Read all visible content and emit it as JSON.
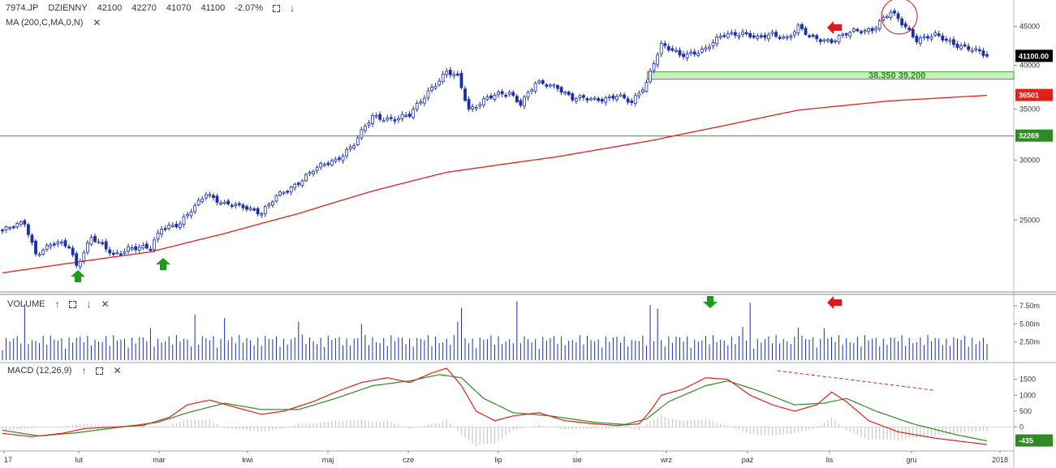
{
  "header": {
    "symbol": "7974.JP",
    "interval": "DZIENNY",
    "open": "42100",
    "high": "42270",
    "low": "41070",
    "close": "41100",
    "change": "-2.07%"
  },
  "panes": {
    "price_indicator": "MA (200,C,MA,0,N)",
    "volume_title": "VOLUME",
    "macd_title": "MACD (12,26,9)"
  },
  "colors": {
    "up_candle": "#ffffff",
    "down_candle": "#1a2fa8",
    "ma_line": "#e0201b",
    "macd_line": "#e0201b",
    "signal_line": "#2e8b22",
    "histogram": "#c8c8c8",
    "volume_bar": "#1a2fa8",
    "zone_fill": "#c9efc0",
    "zone_border": "#3aa935",
    "support_line": "#2e9a2e",
    "price_badge": "#000000",
    "ma_badge": "#e0201b",
    "support_badge": "#2e8b22"
  },
  "chart_data": [
    {
      "type": "candlestick",
      "y_axis": {
        "ticks": [
          25000,
          30000,
          35000,
          40000,
          45000
        ],
        "tick_labels": [
          "25000",
          "30000",
          "35000",
          "40000",
          "45000"
        ],
        "ylim": [
          20500,
          47800
        ],
        "scale": "log"
      },
      "x_axis": {
        "labels": [
          "17",
          "lut",
          "mar",
          "kwi",
          "maj",
          "cze",
          "lip",
          "sie",
          "wrz",
          "paź",
          "lis",
          "gru",
          "2018"
        ]
      },
      "anchors": [
        {
          "i": 0,
          "p": 24200
        },
        {
          "i": 6,
          "p": 24800
        },
        {
          "i": 9,
          "p": 22600
        },
        {
          "i": 14,
          "p": 23300
        },
        {
          "i": 18,
          "p": 23100
        },
        {
          "i": 20,
          "p": 21800
        },
        {
          "i": 24,
          "p": 23700
        },
        {
          "i": 30,
          "p": 22500
        },
        {
          "i": 34,
          "p": 23000
        },
        {
          "i": 40,
          "p": 22900
        },
        {
          "i": 43,
          "p": 24500
        },
        {
          "i": 48,
          "p": 24700
        },
        {
          "i": 52,
          "p": 26000
        },
        {
          "i": 55,
          "p": 27200
        },
        {
          "i": 60,
          "p": 26200
        },
        {
          "i": 66,
          "p": 26000
        },
        {
          "i": 70,
          "p": 25600
        },
        {
          "i": 74,
          "p": 26800
        },
        {
          "i": 78,
          "p": 27600
        },
        {
          "i": 84,
          "p": 29100
        },
        {
          "i": 90,
          "p": 30000
        },
        {
          "i": 95,
          "p": 31500
        },
        {
          "i": 100,
          "p": 34200
        },
        {
          "i": 106,
          "p": 34000
        },
        {
          "i": 110,
          "p": 34300
        },
        {
          "i": 115,
          "p": 37000
        },
        {
          "i": 120,
          "p": 39100
        },
        {
          "i": 123,
          "p": 38600
        },
        {
          "i": 126,
          "p": 35000
        },
        {
          "i": 131,
          "p": 36200
        },
        {
          "i": 137,
          "p": 36800
        },
        {
          "i": 140,
          "p": 35700
        },
        {
          "i": 144,
          "p": 37800
        },
        {
          "i": 150,
          "p": 37500
        },
        {
          "i": 154,
          "p": 36200
        },
        {
          "i": 160,
          "p": 36000
        },
        {
          "i": 166,
          "p": 36500
        },
        {
          "i": 170,
          "p": 35600
        },
        {
          "i": 174,
          "p": 38000
        },
        {
          "i": 176,
          "p": 40500
        },
        {
          "i": 178,
          "p": 42500
        },
        {
          "i": 183,
          "p": 41200
        },
        {
          "i": 190,
          "p": 42000
        },
        {
          "i": 195,
          "p": 43900
        },
        {
          "i": 200,
          "p": 44200
        },
        {
          "i": 204,
          "p": 43300
        },
        {
          "i": 208,
          "p": 44000
        },
        {
          "i": 212,
          "p": 43500
        },
        {
          "i": 215,
          "p": 44800
        },
        {
          "i": 218,
          "p": 43600
        },
        {
          "i": 224,
          "p": 43100
        },
        {
          "i": 230,
          "p": 44300
        },
        {
          "i": 235,
          "p": 44700
        },
        {
          "i": 240,
          "p": 46900
        },
        {
          "i": 244,
          "p": 45000
        },
        {
          "i": 247,
          "p": 43300
        },
        {
          "i": 252,
          "p": 43700
        },
        {
          "i": 257,
          "p": 42800
        },
        {
          "i": 262,
          "p": 41900
        },
        {
          "i": 266,
          "p": 41100
        }
      ],
      "ma200": [
        {
          "i": 0,
          "p": 21300
        },
        {
          "i": 40,
          "p": 22700
        },
        {
          "i": 60,
          "p": 24000
        },
        {
          "i": 80,
          "p": 25500
        },
        {
          "i": 100,
          "p": 27300
        },
        {
          "i": 120,
          "p": 28900
        },
        {
          "i": 150,
          "p": 30300
        },
        {
          "i": 175,
          "p": 31800
        },
        {
          "i": 195,
          "p": 33300
        },
        {
          "i": 215,
          "p": 34900
        },
        {
          "i": 240,
          "p": 35900
        },
        {
          "i": 266,
          "p": 36501
        }
      ],
      "support_line": 32269,
      "zone": {
        "low": 38350,
        "high": 39200,
        "label": "38.350   39.200"
      },
      "badges": {
        "last": "41100.00",
        "ma": "36501",
        "support": "32269"
      },
      "series": [
        {
          "name": "MA",
          "type": "line"
        }
      ]
    },
    {
      "type": "bar",
      "ticks": [
        2500000,
        5000000,
        7500000
      ],
      "tick_labels": [
        "2.50m",
        "5.00m",
        "7.50m"
      ],
      "ylim": [
        0,
        8500000
      ],
      "spikes": [
        {
          "i": 6,
          "v": 7700000
        },
        {
          "i": 40,
          "v": 4400000
        },
        {
          "i": 52,
          "v": 6300000
        },
        {
          "i": 60,
          "v": 5800000
        },
        {
          "i": 80,
          "v": 5300000
        },
        {
          "i": 97,
          "v": 5000000
        },
        {
          "i": 123,
          "v": 5300000
        },
        {
          "i": 124,
          "v": 7200000
        },
        {
          "i": 139,
          "v": 8100000
        },
        {
          "i": 175,
          "v": 7600000
        },
        {
          "i": 177,
          "v": 7100000
        },
        {
          "i": 200,
          "v": 4600000
        },
        {
          "i": 202,
          "v": 7900000
        },
        {
          "i": 215,
          "v": 4500000
        },
        {
          "i": 222,
          "v": 4400000
        }
      ]
    },
    {
      "type": "line",
      "ticks": [
        0,
        500,
        1000,
        1500
      ],
      "tick_labels": [
        "0",
        "500",
        "1000",
        "1500"
      ],
      "badge": "-435",
      "ylim": [
        -650,
        1900
      ],
      "macd": [
        {
          "i": 0,
          "v": -200
        },
        {
          "i": 8,
          "v": -300
        },
        {
          "i": 16,
          "v": -200
        },
        {
          "i": 22,
          "v": -50
        },
        {
          "i": 30,
          "v": 0
        },
        {
          "i": 38,
          "v": 50
        },
        {
          "i": 45,
          "v": 300
        },
        {
          "i": 50,
          "v": 700
        },
        {
          "i": 56,
          "v": 850
        },
        {
          "i": 62,
          "v": 650
        },
        {
          "i": 70,
          "v": 400
        },
        {
          "i": 76,
          "v": 500
        },
        {
          "i": 84,
          "v": 800
        },
        {
          "i": 90,
          "v": 1100
        },
        {
          "i": 97,
          "v": 1400
        },
        {
          "i": 104,
          "v": 1550
        },
        {
          "i": 110,
          "v": 1400
        },
        {
          "i": 116,
          "v": 1700
        },
        {
          "i": 120,
          "v": 1850
        },
        {
          "i": 124,
          "v": 1300
        },
        {
          "i": 128,
          "v": 500
        },
        {
          "i": 133,
          "v": 200
        },
        {
          "i": 138,
          "v": 350
        },
        {
          "i": 145,
          "v": 450
        },
        {
          "i": 152,
          "v": 200
        },
        {
          "i": 160,
          "v": 100
        },
        {
          "i": 166,
          "v": 50
        },
        {
          "i": 172,
          "v": 100
        },
        {
          "i": 175,
          "v": 500
        },
        {
          "i": 178,
          "v": 1000
        },
        {
          "i": 184,
          "v": 1200
        },
        {
          "i": 190,
          "v": 1550
        },
        {
          "i": 196,
          "v": 1500
        },
        {
          "i": 202,
          "v": 1000
        },
        {
          "i": 208,
          "v": 700
        },
        {
          "i": 214,
          "v": 500
        },
        {
          "i": 220,
          "v": 700
        },
        {
          "i": 224,
          "v": 1100
        },
        {
          "i": 228,
          "v": 800
        },
        {
          "i": 234,
          "v": 200
        },
        {
          "i": 242,
          "v": -150
        },
        {
          "i": 252,
          "v": -350
        },
        {
          "i": 266,
          "v": -550
        }
      ],
      "signal": [
        {
          "i": 0,
          "v": -100
        },
        {
          "i": 10,
          "v": -280
        },
        {
          "i": 20,
          "v": -180
        },
        {
          "i": 32,
          "v": 0
        },
        {
          "i": 42,
          "v": 150
        },
        {
          "i": 50,
          "v": 450
        },
        {
          "i": 60,
          "v": 750
        },
        {
          "i": 70,
          "v": 550
        },
        {
          "i": 80,
          "v": 550
        },
        {
          "i": 90,
          "v": 900
        },
        {
          "i": 100,
          "v": 1300
        },
        {
          "i": 110,
          "v": 1450
        },
        {
          "i": 118,
          "v": 1650
        },
        {
          "i": 124,
          "v": 1550
        },
        {
          "i": 130,
          "v": 900
        },
        {
          "i": 138,
          "v": 450
        },
        {
          "i": 148,
          "v": 350
        },
        {
          "i": 160,
          "v": 150
        },
        {
          "i": 168,
          "v": 80
        },
        {
          "i": 174,
          "v": 250
        },
        {
          "i": 180,
          "v": 800
        },
        {
          "i": 190,
          "v": 1300
        },
        {
          "i": 196,
          "v": 1450
        },
        {
          "i": 204,
          "v": 1150
        },
        {
          "i": 214,
          "v": 700
        },
        {
          "i": 222,
          "v": 750
        },
        {
          "i": 228,
          "v": 900
        },
        {
          "i": 236,
          "v": 500
        },
        {
          "i": 246,
          "v": 100
        },
        {
          "i": 258,
          "v": -250
        },
        {
          "i": 266,
          "v": -435
        }
      ],
      "series": [
        {
          "name": "MACD",
          "type": "line"
        },
        {
          "name": "signal",
          "type": "line"
        }
      ]
    }
  ]
}
